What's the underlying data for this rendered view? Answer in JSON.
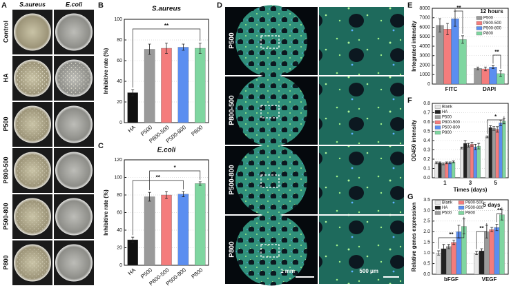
{
  "panel_labels": [
    "A",
    "B",
    "C",
    "D",
    "E",
    "F",
    "G"
  ],
  "panel_a": {
    "columns": [
      "S.aureus",
      "E.coli"
    ],
    "rows": [
      "Control",
      "HA",
      "P500",
      "P800-500",
      "P500-800",
      "P800"
    ]
  },
  "panel_d": {
    "rows": [
      "P500",
      "P800-500",
      "P500-800",
      "P800"
    ],
    "scale_bars": [
      "1 mm",
      "500 μm"
    ]
  },
  "chart_data": [
    {
      "type": "bar",
      "title": "S.aureus",
      "y_label": "Inhibitive rate (%)",
      "categories": [
        "HA",
        "P500",
        "P800-500",
        "P500-800",
        "P800"
      ],
      "values": [
        29,
        71,
        72,
        73,
        72
      ],
      "errors": [
        3,
        5,
        5,
        3,
        5
      ],
      "colors": [
        "#111111",
        "#9a9a9a",
        "#f47c7c",
        "#5b8ef0",
        "#7fd6a0"
      ],
      "ylim": [
        0,
        100
      ],
      "yticks": [
        0,
        20,
        40,
        60,
        80,
        100
      ],
      "grid": true,
      "annotations": [
        "**"
      ]
    },
    {
      "type": "bar",
      "title": "E.coli",
      "y_label": "Inhibitive rate (%)",
      "categories": [
        "HA",
        "P500",
        "P800-500",
        "P500-800",
        "P800"
      ],
      "values": [
        29,
        78,
        80,
        81,
        93
      ],
      "errors": [
        3,
        5,
        4,
        3,
        2
      ],
      "colors": [
        "#111111",
        "#9a9a9a",
        "#f47c7c",
        "#5b8ef0",
        "#7fd6a0"
      ],
      "ylim": [
        0,
        120
      ],
      "yticks": [
        0,
        20,
        40,
        60,
        80,
        100,
        120
      ],
      "grid": true,
      "annotations": [
        "**",
        "*"
      ]
    },
    {
      "type": "bar",
      "legend_title": "12 hours",
      "y_label": "Integrated intensity",
      "categories": [
        "FITC",
        "DAPI"
      ],
      "series": [
        {
          "name": "P500",
          "color": "#9a9a9a",
          "values": [
            6200,
            1650
          ],
          "errors": [
            700,
            150
          ]
        },
        {
          "name": "P800-500",
          "color": "#f47c7c",
          "values": [
            5800,
            1600
          ],
          "errors": [
            600,
            200
          ]
        },
        {
          "name": "P500-800",
          "color": "#5b8ef0",
          "values": [
            6900,
            1800
          ],
          "errors": [
            800,
            150
          ]
        },
        {
          "name": "P800",
          "color": "#7fd6a0",
          "values": [
            4700,
            1100
          ],
          "errors": [
            400,
            300
          ]
        }
      ],
      "ylim": [
        0,
        8000
      ],
      "yticks": [
        0,
        1000,
        2000,
        3000,
        4000,
        5000,
        6000,
        7000,
        8000
      ],
      "grid": true,
      "legend": "upper right",
      "annotations": [
        "**",
        "**"
      ]
    },
    {
      "type": "bar",
      "x_label": "Times (days)",
      "y_label": "OD450 intensity",
      "categories": [
        "1",
        "3",
        "5"
      ],
      "series": [
        {
          "name": "Blank",
          "color": "#e6e6e6",
          "values": [
            0.16,
            0.32,
            0.44
          ],
          "errors": [
            0.01,
            0.01,
            0.01
          ]
        },
        {
          "name": "HA",
          "color": "#222222",
          "values": [
            0.16,
            0.37,
            0.54
          ],
          "errors": [
            0.01,
            0.03,
            0.02
          ]
        },
        {
          "name": "P500",
          "color": "#9a9a9a",
          "values": [
            0.15,
            0.35,
            0.53
          ],
          "errors": [
            0.01,
            0.02,
            0.02
          ]
        },
        {
          "name": "P800-500",
          "color": "#f47c7c",
          "values": [
            0.16,
            0.36,
            0.52
          ],
          "errors": [
            0.01,
            0.02,
            0.03
          ]
        },
        {
          "name": "P500-800",
          "color": "#5b8ef0",
          "values": [
            0.16,
            0.33,
            0.59
          ],
          "errors": [
            0.01,
            0.03,
            0.03
          ]
        },
        {
          "name": "P800",
          "color": "#7fd6a0",
          "values": [
            0.17,
            0.34,
            0.61
          ],
          "errors": [
            0.01,
            0.03,
            0.03
          ]
        }
      ],
      "ylim": [
        0,
        0.8
      ],
      "yticks": [
        {
          "value": 0,
          "label": "0.0"
        },
        0.1,
        0.2,
        0.3,
        0.4,
        0.5,
        0.6,
        0.7,
        0.8
      ],
      "grid": true,
      "legend": "upper left",
      "annotations": [
        "*"
      ]
    },
    {
      "type": "bar",
      "legend_title": "5 days",
      "y_label": "Relative genes expression",
      "categories": [
        "bFGF",
        "VEGF"
      ],
      "series": [
        {
          "name": "Blank",
          "color": "#e6e6e6",
          "values": [
            1.0,
            1.0
          ],
          "errors": [
            0.1,
            0.08
          ]
        },
        {
          "name": "HA",
          "color": "#222222",
          "values": [
            1.2,
            1.1
          ],
          "errors": [
            0.2,
            0.1
          ]
        },
        {
          "name": "P500",
          "color": "#9a9a9a",
          "values": [
            1.3,
            2.0
          ],
          "errors": [
            0.1,
            0.3
          ]
        },
        {
          "name": "P800-500",
          "color": "#f47c7c",
          "values": [
            1.5,
            2.1
          ],
          "errors": [
            0.1,
            0.1
          ]
        },
        {
          "name": "P500-800",
          "color": "#5b8ef0",
          "values": [
            2.0,
            2.2
          ],
          "errors": [
            0.3,
            0.15
          ]
        },
        {
          "name": "P800",
          "color": "#7fd6a0",
          "values": [
            2.25,
            2.8
          ],
          "errors": [
            0.35,
            0.25
          ]
        }
      ],
      "ylim": [
        0,
        3.5
      ],
      "yticks": [
        {
          "value": 0,
          "label": "0.0"
        },
        0.5,
        {
          "value": 1,
          "label": "1.0"
        },
        1.5,
        {
          "value": 2,
          "label": "2.0"
        },
        2.5,
        {
          "value": 3,
          "label": "3.0"
        },
        3.5
      ],
      "grid": true,
      "legend": "upper left",
      "annotations": [
        "**",
        "**",
        "**"
      ]
    }
  ]
}
